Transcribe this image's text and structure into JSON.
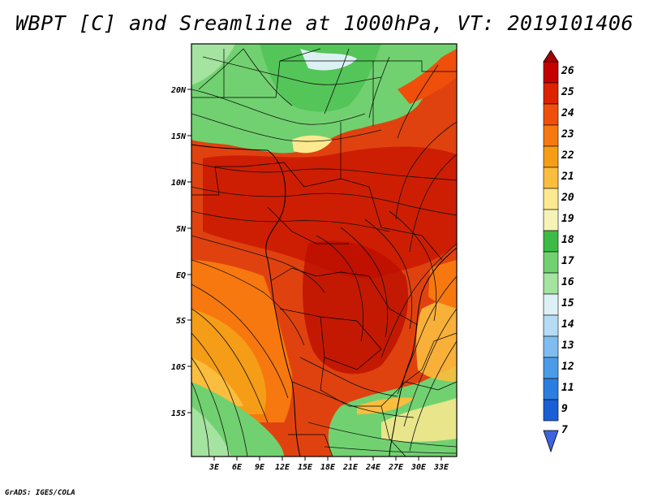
{
  "title": "WBPT [C] and Sreamline at 1000hPa, VT: 2019101406",
  "footer": "GrADS: IGES/COLA",
  "map": {
    "variable": "wet-bulb potential temperature with streamlines",
    "level": "1000hPa",
    "lon_range": [
      0,
      35
    ],
    "lat_range": [
      -20,
      25
    ],
    "x_ticks": [
      "3E",
      "6E",
      "9E",
      "12E",
      "15E",
      "18E",
      "21E",
      "24E",
      "27E",
      "30E",
      "33E"
    ],
    "y_ticks": [
      "20N",
      "15N",
      "10N",
      "5N",
      "EQ",
      "5S",
      "10S",
      "15S"
    ]
  },
  "colorbar": {
    "labels": [
      "26",
      "25",
      "24",
      "23",
      "22",
      "21",
      "20",
      "19",
      "18",
      "17",
      "16",
      "15",
      "14",
      "13",
      "12",
      "11",
      "9",
      "7"
    ],
    "colors": [
      "#a50000",
      "#c40000",
      "#dd2200",
      "#ef4f0a",
      "#f7780e",
      "#f59d16",
      "#fbbd3e",
      "#fde98f",
      "#f6f3b8",
      "#3cbb46",
      "#71d170",
      "#a5e3a0",
      "#dcf1f3",
      "#b5dbf5",
      "#7fbdf0",
      "#4b9ce8",
      "#2b7de0",
      "#1a5fd6",
      "#3e62e0"
    ]
  }
}
